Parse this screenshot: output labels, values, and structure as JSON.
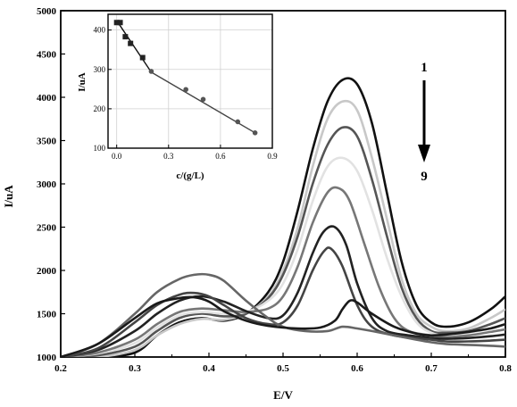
{
  "chart_data": [
    {
      "type": "line",
      "xlabel": "E/V",
      "ylabel": "I/uA",
      "xlim": [
        0.2,
        0.8
      ],
      "ylim": [
        1000,
        5000
      ],
      "xticks": [
        "0.2",
        "0.3",
        "0.4",
        "0.5",
        "0.6",
        "0.7",
        "0.8"
      ],
      "yticks": [
        "1000",
        "1500",
        "2000",
        "2500",
        "3000",
        "3500",
        "4000",
        "4500",
        "5000"
      ],
      "annotation": {
        "top": "1",
        "bottom": "9",
        "arrow": "down"
      },
      "grid": false,
      "series": [
        {
          "color": "#111111",
          "x": [
            0.2,
            0.25,
            0.3,
            0.33,
            0.36,
            0.39,
            0.42,
            0.45,
            0.48,
            0.5,
            0.52,
            0.54,
            0.56,
            0.58,
            0.6,
            0.62,
            0.64,
            0.66,
            0.68,
            0.7,
            0.72,
            0.75,
            0.78,
            0.8
          ],
          "y": [
            1000,
            1000,
            1050,
            1250,
            1400,
            1450,
            1420,
            1500,
            1750,
            2100,
            2700,
            3400,
            3950,
            4200,
            4150,
            3700,
            2900,
            2100,
            1600,
            1400,
            1350,
            1400,
            1550,
            1700
          ]
        },
        {
          "color": "#c8c8c8",
          "x": [
            0.2,
            0.25,
            0.3,
            0.33,
            0.36,
            0.39,
            0.42,
            0.45,
            0.48,
            0.5,
            0.52,
            0.54,
            0.56,
            0.58,
            0.6,
            0.62,
            0.64,
            0.66,
            0.68,
            0.7,
            0.72,
            0.75,
            0.78,
            0.8
          ],
          "y": [
            1000,
            1000,
            1080,
            1250,
            1380,
            1440,
            1430,
            1500,
            1700,
            2000,
            2500,
            3200,
            3750,
            3950,
            3850,
            3300,
            2600,
            1900,
            1500,
            1350,
            1300,
            1330,
            1450,
            1550
          ]
        },
        {
          "color": "#555555",
          "x": [
            0.2,
            0.25,
            0.3,
            0.33,
            0.36,
            0.39,
            0.42,
            0.45,
            0.48,
            0.5,
            0.52,
            0.54,
            0.56,
            0.58,
            0.6,
            0.62,
            0.64,
            0.66,
            0.68,
            0.7,
            0.72,
            0.75,
            0.78,
            0.8
          ],
          "y": [
            1000,
            1020,
            1120,
            1300,
            1450,
            1500,
            1470,
            1500,
            1680,
            1950,
            2400,
            3000,
            3450,
            3650,
            3550,
            3050,
            2400,
            1800,
            1450,
            1300,
            1280,
            1300,
            1380,
            1450
          ]
        },
        {
          "color": "#e2e2e2",
          "x": [
            0.2,
            0.25,
            0.3,
            0.33,
            0.36,
            0.39,
            0.42,
            0.45,
            0.48,
            0.5,
            0.52,
            0.54,
            0.56,
            0.58,
            0.6,
            0.62,
            0.64,
            0.66,
            0.68,
            0.7,
            0.72,
            0.75,
            0.78,
            0.8
          ],
          "y": [
            1000,
            1040,
            1160,
            1340,
            1480,
            1520,
            1500,
            1520,
            1650,
            1850,
            2250,
            2800,
            3200,
            3300,
            3150,
            2700,
            2150,
            1700,
            1400,
            1280,
            1250,
            1280,
            1330,
            1380
          ]
        },
        {
          "color": "#777777",
          "x": [
            0.2,
            0.25,
            0.3,
            0.33,
            0.36,
            0.39,
            0.42,
            0.45,
            0.48,
            0.5,
            0.52,
            0.54,
            0.56,
            0.575,
            0.59,
            0.61,
            0.63,
            0.65,
            0.67,
            0.7,
            0.72,
            0.75,
            0.78,
            0.8
          ],
          "y": [
            1000,
            1050,
            1200,
            1380,
            1520,
            1560,
            1540,
            1520,
            1560,
            1700,
            2050,
            2550,
            2900,
            2950,
            2800,
            2300,
            1800,
            1450,
            1300,
            1250,
            1230,
            1250,
            1290,
            1320
          ]
        },
        {
          "color": "#222222",
          "x": [
            0.2,
            0.25,
            0.3,
            0.33,
            0.36,
            0.39,
            0.42,
            0.45,
            0.48,
            0.5,
            0.52,
            0.54,
            0.555,
            0.57,
            0.585,
            0.6,
            0.62,
            0.64,
            0.67,
            0.7,
            0.72,
            0.75,
            0.78,
            0.8
          ],
          "y": [
            1000,
            1080,
            1300,
            1500,
            1650,
            1700,
            1640,
            1530,
            1450,
            1480,
            1750,
            2200,
            2450,
            2500,
            2300,
            1850,
            1450,
            1300,
            1250,
            1220,
            1210,
            1220,
            1240,
            1260
          ]
        },
        {
          "color": "#444444",
          "x": [
            0.2,
            0.25,
            0.3,
            0.33,
            0.36,
            0.38,
            0.4,
            0.42,
            0.45,
            0.48,
            0.5,
            0.52,
            0.54,
            0.555,
            0.565,
            0.58,
            0.6,
            0.62,
            0.65,
            0.7,
            0.72,
            0.75,
            0.78,
            0.8
          ],
          "y": [
            1000,
            1100,
            1400,
            1600,
            1720,
            1740,
            1700,
            1600,
            1450,
            1380,
            1400,
            1600,
            2000,
            2220,
            2250,
            2050,
            1600,
            1350,
            1250,
            1200,
            1180,
            1180,
            1190,
            1200
          ]
        },
        {
          "color": "#666666",
          "x": [
            0.2,
            0.25,
            0.3,
            0.33,
            0.36,
            0.38,
            0.4,
            0.42,
            0.45,
            0.48,
            0.5,
            0.53,
            0.56,
            0.58,
            0.6,
            0.62,
            0.65,
            0.68,
            0.7,
            0.72,
            0.75,
            0.78,
            0.8
          ],
          "y": [
            1000,
            1150,
            1500,
            1750,
            1900,
            1950,
            1950,
            1880,
            1650,
            1450,
            1350,
            1300,
            1300,
            1350,
            1330,
            1300,
            1250,
            1200,
            1170,
            1150,
            1140,
            1130,
            1120
          ]
        },
        {
          "color": "#1a1a1a",
          "x": [
            0.2,
            0.25,
            0.3,
            0.33,
            0.36,
            0.38,
            0.4,
            0.42,
            0.45,
            0.48,
            0.52,
            0.55,
            0.57,
            0.58,
            0.59,
            0.6,
            0.62,
            0.65,
            0.68,
            0.7,
            0.72,
            0.75,
            0.78,
            0.8
          ],
          "y": [
            1000,
            1150,
            1450,
            1620,
            1680,
            1690,
            1640,
            1530,
            1420,
            1360,
            1330,
            1340,
            1420,
            1550,
            1650,
            1630,
            1500,
            1350,
            1270,
            1250,
            1260,
            1290,
            1330,
            1380
          ]
        }
      ]
    },
    {
      "type": "scatter",
      "xlabel": "c/(g/L)",
      "ylabel": "I/uA",
      "xlim": [
        -0.05,
        0.9
      ],
      "ylim": [
        100,
        440
      ],
      "xticks": [
        "0.0",
        "0.3",
        "0.6",
        "0.9"
      ],
      "yticks": [
        "100",
        "200",
        "300",
        "400"
      ],
      "grid": true,
      "series": [
        {
          "marker": "square",
          "x": [
            0.0,
            0.02,
            0.05,
            0.08,
            0.15
          ],
          "y": [
            419,
            419,
            383,
            366,
            330
          ]
        },
        {
          "marker": "circle",
          "x": [
            0.2,
            0.4,
            0.5,
            0.7,
            0.8
          ],
          "y": [
            295,
            249,
            224,
            167,
            139
          ]
        }
      ],
      "fits": [
        {
          "x": [
            0.0,
            0.2
          ],
          "y": [
            424,
            293
          ]
        },
        {
          "x": [
            0.2,
            0.8
          ],
          "y": [
            293,
            139
          ]
        }
      ]
    }
  ]
}
